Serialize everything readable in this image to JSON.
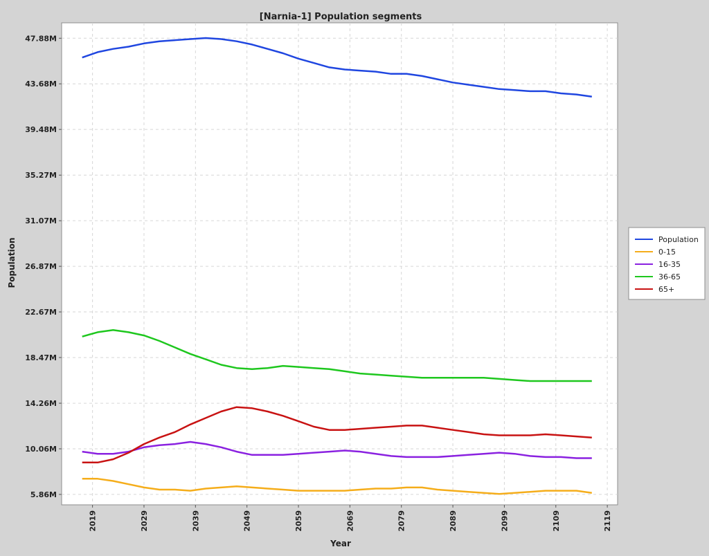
{
  "chart_data": {
    "type": "line",
    "title": "[Narnia-1] Population segments",
    "xlabel": "Year",
    "ylabel": "Population",
    "xlim": [
      2013.0,
      2121.0
    ],
    "ylim": [
      4.9,
      49.3
    ],
    "x_ticks": [
      2019,
      2029,
      2039,
      2049,
      2059,
      2069,
      2079,
      2089,
      2099,
      2109,
      2119
    ],
    "y_ticks": [
      {
        "value": 5.86,
        "label": "5.86M"
      },
      {
        "value": 10.06,
        "label": "10.06M"
      },
      {
        "value": 14.26,
        "label": "14.26M"
      },
      {
        "value": 18.47,
        "label": "18.47M"
      },
      {
        "value": 22.67,
        "label": "22.67M"
      },
      {
        "value": 26.87,
        "label": "26.87M"
      },
      {
        "value": 31.07,
        "label": "31.07M"
      },
      {
        "value": 35.27,
        "label": "35.27M"
      },
      {
        "value": 39.48,
        "label": "39.48M"
      },
      {
        "value": 43.68,
        "label": "43.68M"
      },
      {
        "value": 47.88,
        "label": "47.88M"
      }
    ],
    "grid": true,
    "legend_position": "right",
    "x": [
      2017,
      2020,
      2023,
      2026,
      2029,
      2032,
      2035,
      2038,
      2041,
      2044,
      2047,
      2050,
      2053,
      2056,
      2059,
      2062,
      2065,
      2068,
      2071,
      2074,
      2077,
      2080,
      2083,
      2086,
      2089,
      2092,
      2095,
      2098,
      2101,
      2104,
      2107,
      2110,
      2113,
      2116
    ],
    "series": [
      {
        "name": "Population",
        "color": "#1f46e0",
        "values": [
          46.1,
          46.6,
          46.9,
          47.1,
          47.4,
          47.6,
          47.7,
          47.8,
          47.9,
          47.8,
          47.6,
          47.3,
          46.9,
          46.5,
          46.0,
          45.6,
          45.2,
          45.0,
          44.9,
          44.8,
          44.6,
          44.6,
          44.4,
          44.1,
          43.8,
          43.6,
          43.4,
          43.2,
          43.1,
          43.0,
          43.0,
          42.8,
          42.7,
          42.5
        ]
      },
      {
        "name": "0-15",
        "color": "#f5ad1a",
        "values": [
          7.3,
          7.3,
          7.1,
          6.8,
          6.5,
          6.3,
          6.3,
          6.2,
          6.4,
          6.5,
          6.6,
          6.5,
          6.4,
          6.3,
          6.2,
          6.2,
          6.2,
          6.2,
          6.3,
          6.4,
          6.4,
          6.5,
          6.5,
          6.3,
          6.2,
          6.1,
          6.0,
          5.9,
          6.0,
          6.1,
          6.2,
          6.2,
          6.2,
          6.0
        ]
      },
      {
        "name": "16-35",
        "color": "#8a21e0",
        "values": [
          9.8,
          9.6,
          9.6,
          9.8,
          10.2,
          10.4,
          10.5,
          10.7,
          10.5,
          10.2,
          9.8,
          9.5,
          9.5,
          9.5,
          9.6,
          9.7,
          9.8,
          9.9,
          9.8,
          9.6,
          9.4,
          9.3,
          9.3,
          9.3,
          9.4,
          9.5,
          9.6,
          9.7,
          9.6,
          9.4,
          9.3,
          9.3,
          9.2,
          9.2
        ]
      },
      {
        "name": "36-65",
        "color": "#1ec71e",
        "values": [
          20.4,
          20.8,
          21.0,
          20.8,
          20.5,
          20.0,
          19.4,
          18.8,
          18.3,
          17.8,
          17.5,
          17.4,
          17.5,
          17.7,
          17.6,
          17.5,
          17.4,
          17.2,
          17.0,
          16.9,
          16.8,
          16.7,
          16.6,
          16.6,
          16.6,
          16.6,
          16.6,
          16.5,
          16.4,
          16.3,
          16.3,
          16.3,
          16.3,
          16.3
        ]
      },
      {
        "name": "65+",
        "color": "#c81212",
        "values": [
          8.8,
          8.8,
          9.1,
          9.7,
          10.5,
          11.1,
          11.6,
          12.3,
          12.9,
          13.5,
          13.9,
          13.8,
          13.5,
          13.1,
          12.6,
          12.1,
          11.8,
          11.8,
          11.9,
          12.0,
          12.1,
          12.2,
          12.2,
          12.0,
          11.8,
          11.6,
          11.4,
          11.3,
          11.3,
          11.3,
          11.4,
          11.3,
          11.2,
          11.1
        ]
      }
    ]
  }
}
